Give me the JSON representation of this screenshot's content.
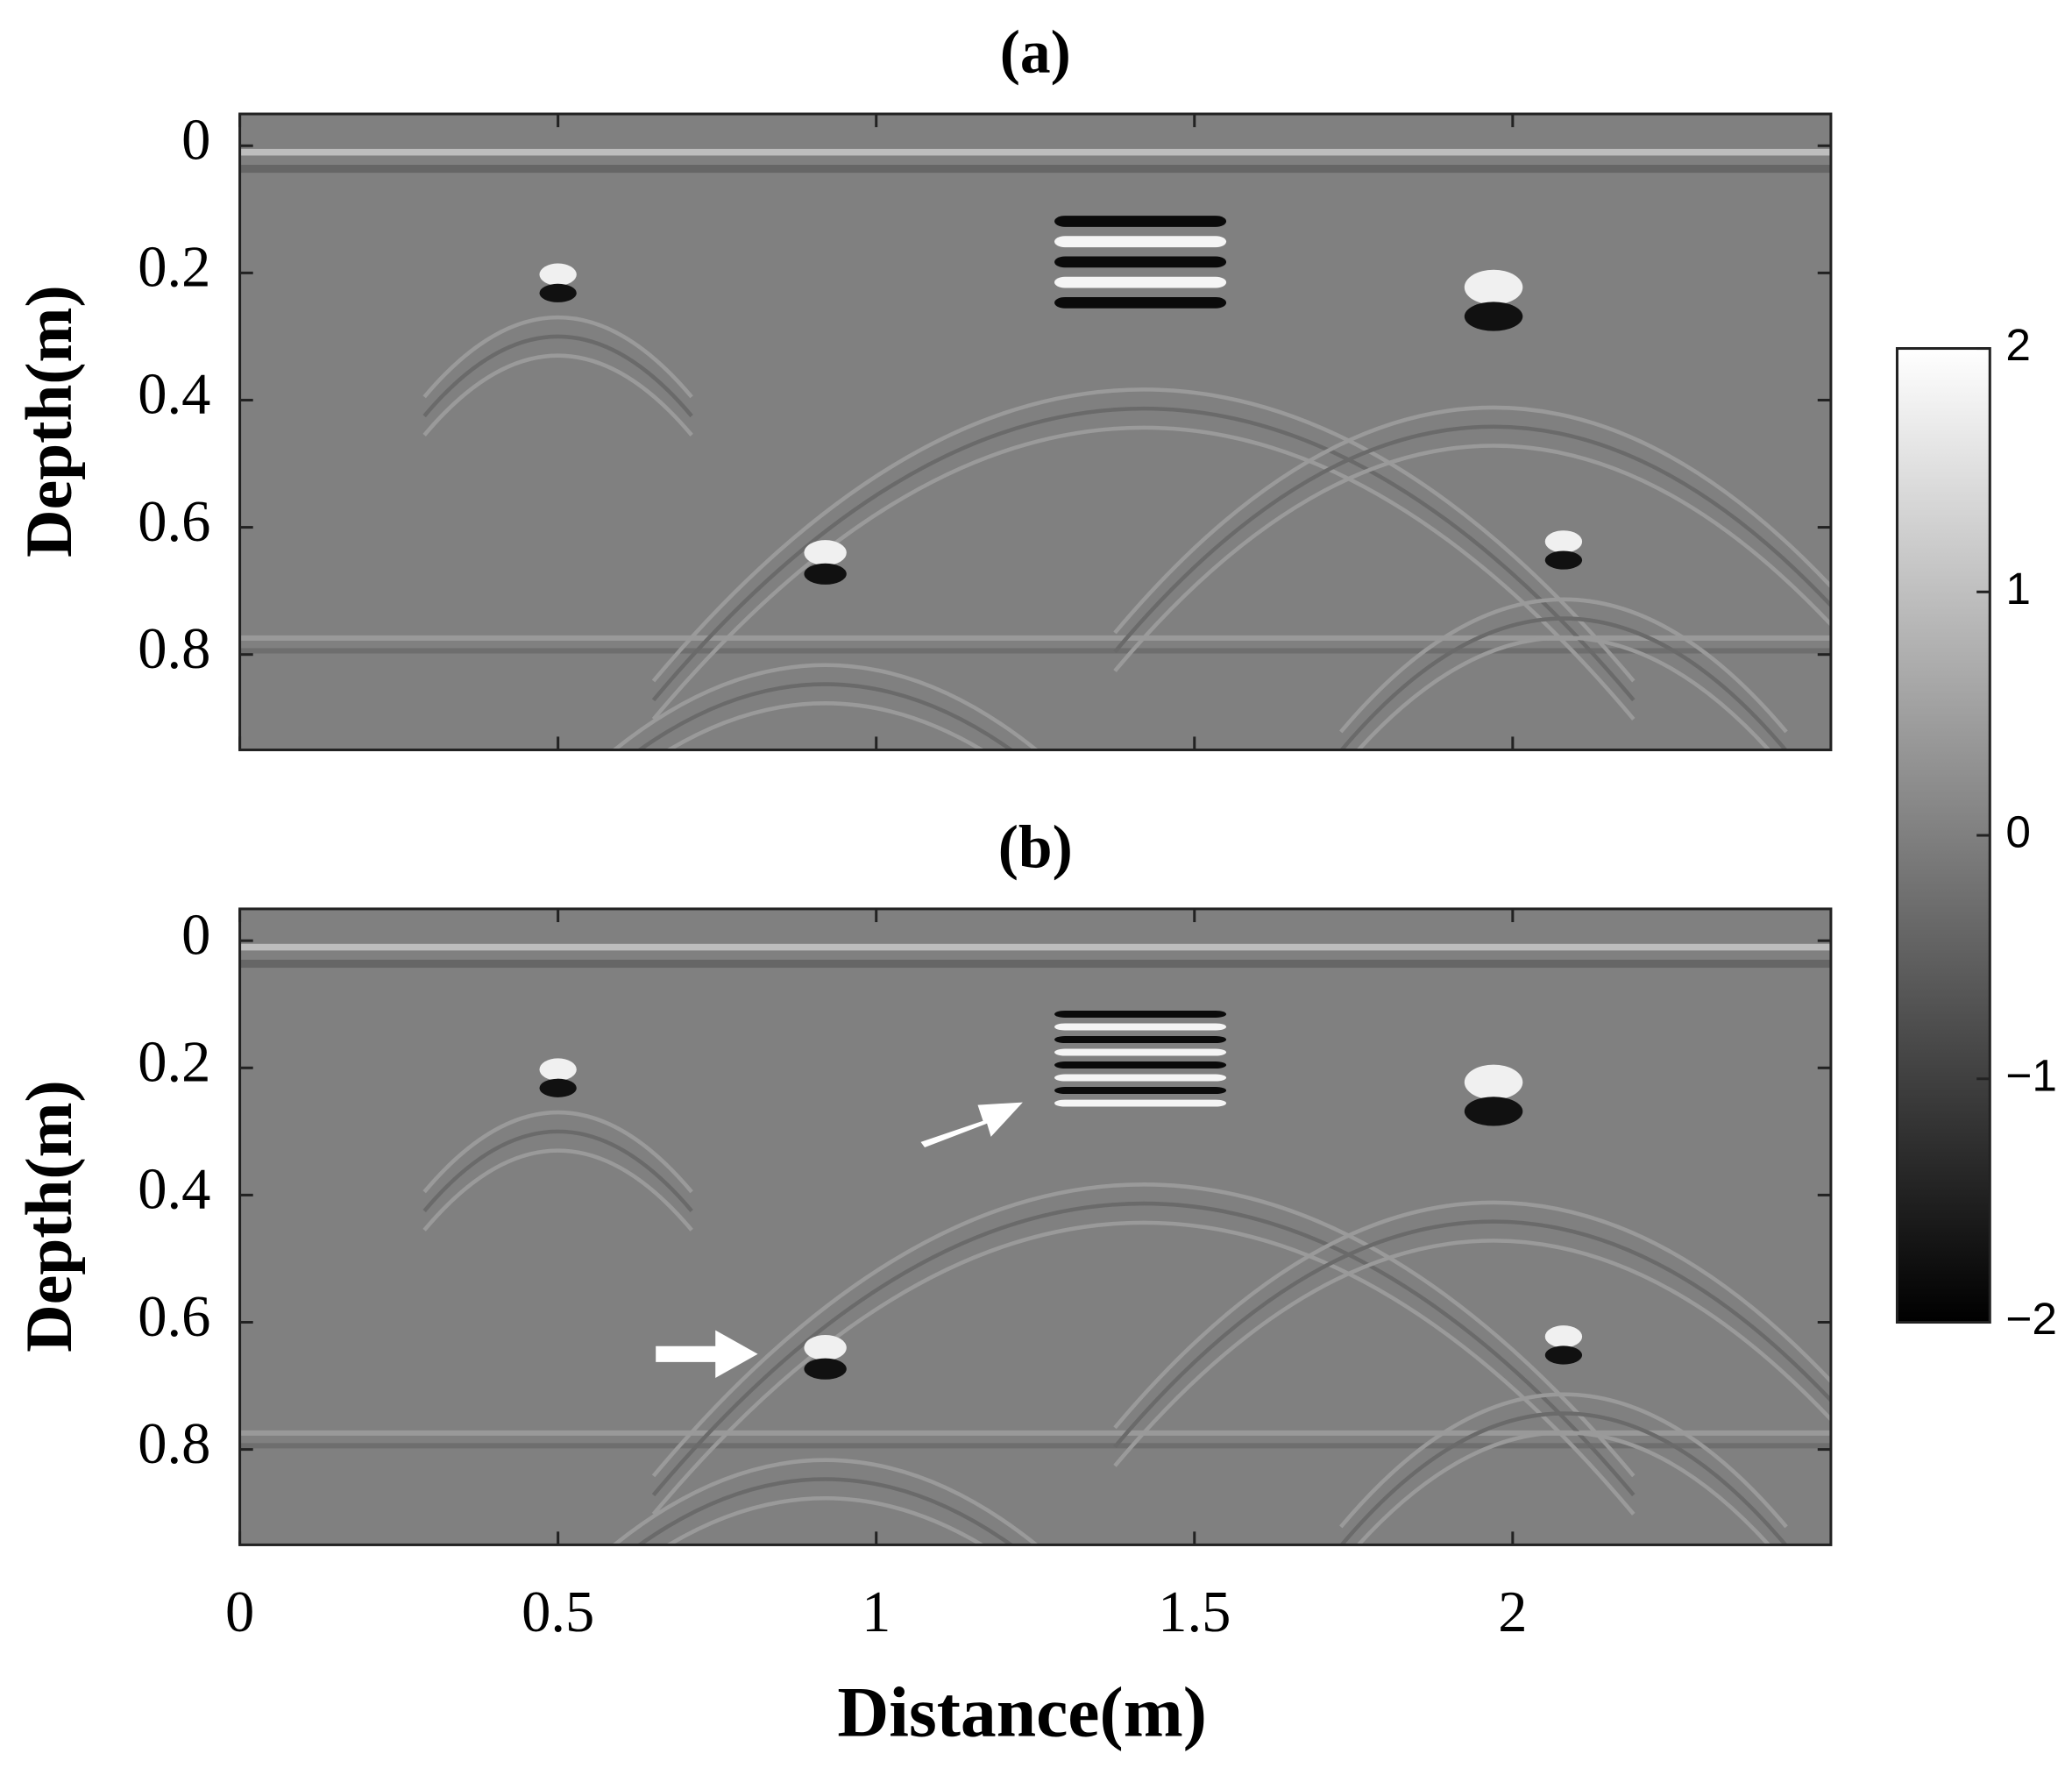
{
  "chart_data": [
    {
      "type": "image",
      "title": "(a)",
      "ylabel": "Depth(m)",
      "xlim": [
        0,
        2.5
      ],
      "ylim": [
        -0.05,
        0.95
      ],
      "xticks": [
        0,
        0.5,
        1,
        1.5,
        2
      ],
      "xticklabels": false,
      "yticks": [
        0,
        0.2,
        0.4,
        0.6,
        0.8
      ]
    },
    {
      "type": "image",
      "title": "(b)",
      "ylabel": "Depth(m)",
      "xlabel": "Distance(m)",
      "xlim": [
        0,
        2.5
      ],
      "ylim": [
        -0.05,
        0.95
      ],
      "xticks": [
        0,
        0.5,
        1,
        1.5,
        2
      ],
      "xticklabels": true,
      "yticks": [
        0,
        0.2,
        0.4,
        0.6,
        0.8
      ]
    }
  ],
  "colorbar": {
    "colormap": "gray",
    "lim": [
      -2,
      2
    ],
    "ticks": [
      {
        "value": -2,
        "label": "−2"
      },
      {
        "value": -1,
        "label": "−1"
      },
      0,
      1,
      2
    ]
  }
}
